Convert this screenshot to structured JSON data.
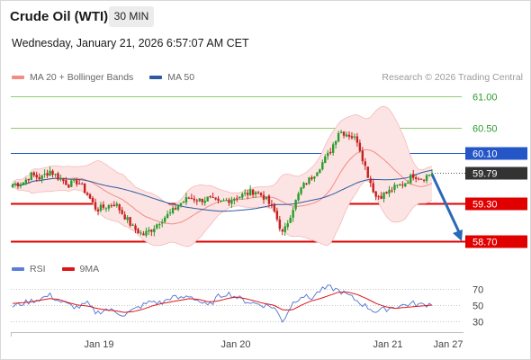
{
  "header": {
    "instrument": "Crude Oil (WTI)",
    "timeframe": "30 MIN",
    "datetime": "Wednesday, January 21, 2026 6:57:07 AM CET"
  },
  "credit": "Research © 2026 Trading Central",
  "legend_price": [
    {
      "label": "MA 20 + Bollinger Bands",
      "color": "#f08c84"
    },
    {
      "label": "MA 50",
      "color": "#2d5aa0"
    }
  ],
  "legend_rsi": [
    {
      "label": "RSI",
      "color": "#5b7fd6"
    },
    {
      "label": "9MA",
      "color": "#e01515"
    }
  ],
  "colors": {
    "up": "#2a9d2a",
    "down": "#c62020",
    "band_fill": "#fde4e4",
    "band_line": "#f4b8b8",
    "ma20": "#f08c84",
    "ma50": "#2d5aa0",
    "resistance_green": "#8fcf6e",
    "level_blue": "#2456c8",
    "level_red": "#e00000",
    "arrow": "#2a68b8"
  },
  "chart_data": {
    "type": "candlestick",
    "interval": "30 MIN",
    "y_range": [
      58.58,
      61.15
    ],
    "x_ticks": [
      "Jan 19",
      "Jan 20",
      "Jan 21",
      "Jan 27"
    ],
    "levels": [
      {
        "price": 61.0,
        "label": "61.00",
        "style": "green"
      },
      {
        "price": 60.5,
        "label": "60.50",
        "style": "green"
      },
      {
        "price": 60.1,
        "label": "60.10",
        "style": "blue"
      },
      {
        "price": 59.79,
        "label": "59.79",
        "style": "current"
      },
      {
        "price": 59.3,
        "label": "59.30",
        "style": "red"
      },
      {
        "price": 58.7,
        "label": "58.70",
        "style": "red"
      }
    ],
    "forecast": {
      "from": 59.79,
      "to": 58.7
    },
    "key_closes": [
      59.6,
      59.62,
      59.75,
      59.7,
      59.82,
      59.7,
      59.6,
      59.65,
      59.45,
      59.2,
      59.25,
      59.3,
      59.1,
      58.9,
      58.8,
      58.9,
      59.05,
      59.15,
      59.3,
      59.4,
      59.35,
      59.38,
      59.3,
      59.35,
      59.4,
      59.45,
      59.5,
      59.4,
      59.2,
      58.8,
      59.2,
      59.55,
      59.7,
      59.9,
      60.1,
      60.45,
      60.4,
      60.3,
      59.8,
      59.4,
      59.45,
      59.55,
      59.62,
      59.75,
      59.7,
      59.79
    ],
    "rsi": {
      "ticks": [
        70,
        50,
        30
      ],
      "range": [
        20,
        80
      ],
      "rsi_key": [
        48,
        52,
        55,
        58,
        62,
        55,
        50,
        47,
        52,
        40,
        45,
        42,
        38,
        44,
        50,
        55,
        52,
        60,
        58,
        62,
        55,
        48,
        60,
        65,
        60,
        55,
        52,
        50,
        48,
        30,
        52,
        62,
        58,
        68,
        72,
        68,
        62,
        55,
        48,
        42,
        45,
        48,
        50,
        52,
        50,
        52
      ],
      "ma_key": [
        52,
        53,
        54,
        56,
        58,
        57,
        53,
        50,
        49,
        46,
        44,
        43,
        41,
        42,
        45,
        49,
        52,
        54,
        56,
        58,
        57,
        54,
        55,
        58,
        60,
        58,
        55,
        52,
        50,
        44,
        44,
        50,
        55,
        58,
        62,
        66,
        66,
        63,
        58,
        52,
        48,
        46,
        47,
        48,
        49,
        50
      ]
    }
  }
}
